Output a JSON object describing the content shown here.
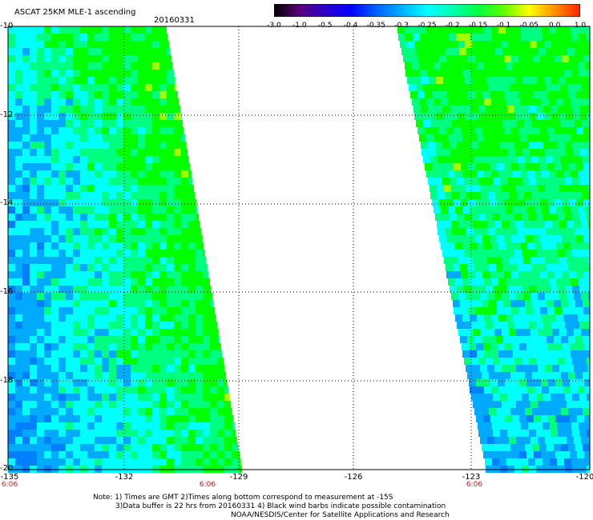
{
  "header": {
    "title": "ASCAT 25KM MLE-1 ascending",
    "date": "20160331"
  },
  "colorbar": {
    "labels": [
      "-3.0",
      "-1.0",
      "-0.5",
      "-0.4",
      "-0.35",
      "-0.3",
      "-0.25",
      "-0.2",
      "-0.15",
      "-0.1",
      "-0.05",
      "0.0",
      "1.0"
    ],
    "colors": [
      "#000000",
      "#5a007a",
      "#2a00c8",
      "#0000ff",
      "#0060ff",
      "#00b0ff",
      "#00ffff",
      "#00ffb0",
      "#00ff40",
      "#60ff00",
      "#ffff00",
      "#ff9000",
      "#ff2000"
    ]
  },
  "axes": {
    "y_labels": [
      "-10",
      "-12",
      "-14",
      "-16",
      "-18",
      "-20"
    ],
    "x_labels": [
      "-135",
      "-132",
      "-129",
      "-126",
      "-123",
      "-120"
    ]
  },
  "times": [
    "6:06",
    "6:06",
    "6:06"
  ],
  "notes": {
    "line1": "Note: 1) Times are GMT 2)Times along bottom correspond to measurement at -15S",
    "line2": "3)Data buffer is 22 hrs from 20160331 4) Black wind barbs indicate possible contamination",
    "line3": "NOAA/NESDIS/Center for Satellite Applications and Research"
  },
  "swath_colors": {
    "low": "#00ffff",
    "mid": "#00ff80",
    "high": "#00ff00",
    "blue": "#00aaff",
    "deep": "#0080ff",
    "yellow": "#a0ff00"
  }
}
